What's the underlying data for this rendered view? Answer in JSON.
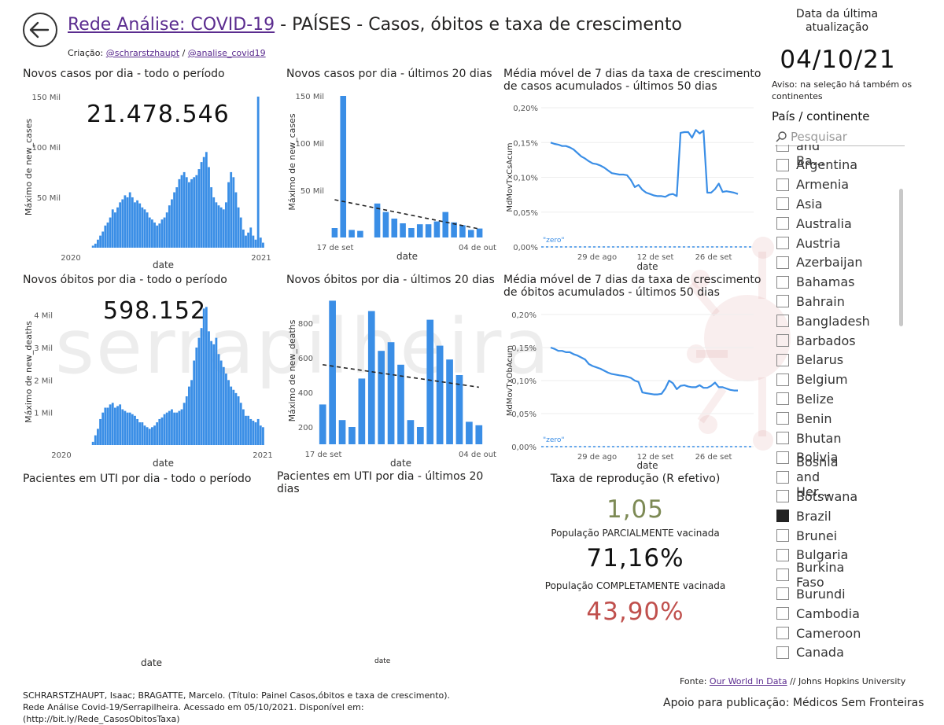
{
  "header": {
    "title_link": "Rede Análise: COVID-19",
    "title_rest": " - PAÍSES - Casos, óbitos e taxa de crescimento",
    "credit_prefix": "Criação: ",
    "credit_link1": "@schrarstzhaupt",
    "credit_sep": " / ",
    "credit_link2": "@analise_covid19"
  },
  "update": {
    "label": "Data da última atualização",
    "date": "04/10/21",
    "warning": "Aviso: na seleção há também os continentes"
  },
  "slicer": {
    "title": "País / continente",
    "search_placeholder": "Pesquisar",
    "items": [
      "Antigua and Ba...",
      "Argentina",
      "Armenia",
      "Asia",
      "Australia",
      "Austria",
      "Azerbaijan",
      "Bahamas",
      "Bahrain",
      "Bangladesh",
      "Barbados",
      "Belarus",
      "Belgium",
      "Belize",
      "Benin",
      "Bhutan",
      "Bolivia",
      "Bosnia and Her...",
      "Botswana",
      "Brazil",
      "Brunei",
      "Bulgaria",
      "Burkina Faso",
      "Burundi",
      "Cambodia",
      "Cameroon",
      "Canada"
    ],
    "selected": "Brazil"
  },
  "kpi": {
    "total_cases": "21.478.546",
    "total_deaths": "598.152",
    "r_title": "Taxa de reprodução (R efetivo)",
    "r_value": "1,05",
    "partial_label": "População PARCIALMENTE vacinada",
    "partial_value": "71,16%",
    "full_label": "População COMPLETAMENTE vacinada",
    "full_value": "43,90%"
  },
  "watermark": "serrapilheira",
  "uti": {
    "title_all": "Pacientes em UTI por dia - todo o período",
    "title_20": "Pacientes em UTI por dia - últimos 20 dias",
    "xlabel_all": "date",
    "xlabel_20": "date"
  },
  "footer": {
    "citation": "SCHRARSTZHAUPT, Isaac; BRAGATTE, Marcelo. (Título: Painel Casos,óbitos e taxa de crescimento). Rede Análise Covid-19/Serrapilheira. Acessado em 05/10/2021. Disponível em: (http://bit.ly/Rede_CasosObitosTaxa)",
    "source_prefix": "Fonte: ",
    "source_link": "Our World In Data",
    "source_rest": " // Johns Hopkins University",
    "support": "Apoio para publicação: Médicos Sem Fronteiras"
  },
  "colors": {
    "bar": "#3a8ee6",
    "line": "#3a8ee6",
    "trend": "#222222",
    "r_value": "#7d8a55",
    "full_value": "#c0504d"
  },
  "chart_data": [
    {
      "id": "cases_all",
      "type": "bar",
      "title": "Novos casos por dia - todo o período",
      "xlabel": "date",
      "ylabel": "Máximo de new_cases",
      "x_ticks": [
        "2020",
        "2021"
      ],
      "y_ticks": [
        "50 Mil",
        "100 Mil",
        "150 Mil"
      ],
      "ylim": [
        0,
        160000
      ],
      "values": [
        0,
        0,
        0,
        0,
        0,
        0,
        0,
        0,
        0,
        0,
        0,
        0,
        2000,
        4000,
        8000,
        12000,
        16000,
        22000,
        25000,
        30000,
        38000,
        35000,
        40000,
        45000,
        48000,
        52000,
        50000,
        55000,
        50000,
        45000,
        47000,
        44000,
        40000,
        38000,
        35000,
        30000,
        28000,
        25000,
        22000,
        24000,
        28000,
        30000,
        35000,
        42000,
        48000,
        55000,
        60000,
        68000,
        72000,
        75000,
        70000,
        65000,
        68000,
        70000,
        72000,
        78000,
        85000,
        90000,
        95000,
        80000,
        60000,
        50000,
        45000,
        42000,
        40000,
        38000,
        45000,
        65000,
        75000,
        70000,
        55000,
        40000,
        30000,
        18000,
        12000,
        15000,
        20000,
        12000,
        8000,
        150000,
        10000,
        5000
      ]
    },
    {
      "id": "cases_20",
      "type": "bar",
      "title": "Novos casos por dia - últimos 20 dias",
      "xlabel": "date",
      "ylabel": "Máximo de new_cases",
      "x_ticks": [
        "17 de set",
        "04 de out"
      ],
      "y_ticks": [
        "50 Mil",
        "100 Mil",
        "150 Mil"
      ],
      "ylim": [
        0,
        160000
      ],
      "values": [
        10000,
        150000,
        8000,
        7000,
        0,
        36000,
        27000,
        20000,
        15000,
        10000,
        14000,
        14000,
        17000,
        27000,
        16000,
        13000,
        8000,
        9500
      ],
      "trend": [
        40000,
        9000
      ]
    },
    {
      "id": "growth_cases",
      "type": "line",
      "title": "Média móvel de 7 dias da taxa de crescimento de casos acumulados - últimos 50 dias",
      "xlabel": "date",
      "ylabel": "MdMovTxCsAcum",
      "x_ticks": [
        "29 de ago",
        "12 de set",
        "26 de set"
      ],
      "y_ticks": [
        "0,00%",
        "0,05%",
        "0,10%",
        "0,15%",
        "0,20%"
      ],
      "ylim": [
        0,
        0.2
      ],
      "reference": "\"zero\"",
      "values": [
        0.15,
        0.148,
        0.147,
        0.145,
        0.145,
        0.143,
        0.14,
        0.135,
        0.13,
        0.127,
        0.123,
        0.12,
        0.119,
        0.117,
        0.114,
        0.11,
        0.106,
        0.105,
        0.104,
        0.104,
        0.103,
        0.096,
        0.086,
        0.089,
        0.082,
        0.078,
        0.076,
        0.074,
        0.073,
        0.073,
        0.072,
        0.075,
        0.076,
        0.073,
        0.164,
        0.165,
        0.165,
        0.157,
        0.168,
        0.163,
        0.167,
        0.078,
        0.078,
        0.083,
        0.091,
        0.079,
        0.08,
        0.079,
        0.078,
        0.076
      ]
    },
    {
      "id": "deaths_all",
      "type": "bar",
      "title": "Novos óbitos por dia - todo o período",
      "xlabel": "date",
      "ylabel": "Máximo de new_deaths",
      "x_ticks": [
        "2020",
        "2021"
      ],
      "y_ticks": [
        "1 Mil",
        "2 Mil",
        "3 Mil",
        "4 Mil"
      ],
      "ylim": [
        0,
        4500
      ],
      "values": [
        0,
        0,
        0,
        0,
        0,
        0,
        0,
        0,
        0,
        0,
        0,
        0,
        100,
        300,
        500,
        800,
        1000,
        1150,
        1150,
        1250,
        1300,
        1150,
        1200,
        1250,
        1100,
        1050,
        1000,
        1000,
        950,
        900,
        800,
        700,
        700,
        600,
        550,
        500,
        550,
        600,
        700,
        800,
        850,
        950,
        1000,
        1050,
        1100,
        1000,
        1000,
        1050,
        1100,
        1300,
        1500,
        1800,
        2000,
        2600,
        3000,
        3300,
        3600,
        4200,
        4250,
        3500,
        3200,
        3100,
        3300,
        2800,
        2600,
        2400,
        2200,
        2000,
        1800,
        1700,
        1600,
        1500,
        1300,
        1100,
        900,
        900,
        800,
        750,
        700,
        800,
        600,
        550
      ]
    },
    {
      "id": "deaths_20",
      "type": "bar",
      "title": "Novos óbitos por dia - últimos 20 dias",
      "xlabel": "date",
      "ylabel": "Máximo de new_deaths",
      "x_ticks": [
        "17 de set",
        "04 de out"
      ],
      "y_ticks": [
        "200",
        "400",
        "600",
        "800"
      ],
      "ylim": [
        100,
        950
      ],
      "values": [
        330,
        930,
        240,
        200,
        480,
        870,
        640,
        690,
        560,
        240,
        200,
        820,
        670,
        590,
        500,
        230,
        210
      ],
      "trend": [
        560,
        430
      ]
    },
    {
      "id": "growth_deaths",
      "type": "line",
      "title": "Média móvel de 7 dias da taxa de crescimento de óbitos acumulados - últimos 50 dias",
      "xlabel": "date",
      "ylabel": "MdMovTxObAcum",
      "x_ticks": [
        "29 de ago",
        "12 de set",
        "26 de set"
      ],
      "y_ticks": [
        "0,00%",
        "0,05%",
        "0,10%",
        "0,15%",
        "0,20%"
      ],
      "ylim": [
        0,
        0.2
      ],
      "reference": "\"zero\"",
      "values": [
        0.15,
        0.148,
        0.145,
        0.145,
        0.143,
        0.143,
        0.14,
        0.138,
        0.135,
        0.132,
        0.125,
        0.122,
        0.12,
        0.118,
        0.115,
        0.112,
        0.11,
        0.109,
        0.108,
        0.107,
        0.106,
        0.104,
        0.1,
        0.098,
        0.082,
        0.081,
        0.08,
        0.079,
        0.079,
        0.08,
        0.088,
        0.1,
        0.096,
        0.087,
        0.092,
        0.093,
        0.091,
        0.09,
        0.09,
        0.093,
        0.089,
        0.089,
        0.092,
        0.097,
        0.09,
        0.09,
        0.088,
        0.086,
        0.085,
        0.085
      ]
    }
  ]
}
